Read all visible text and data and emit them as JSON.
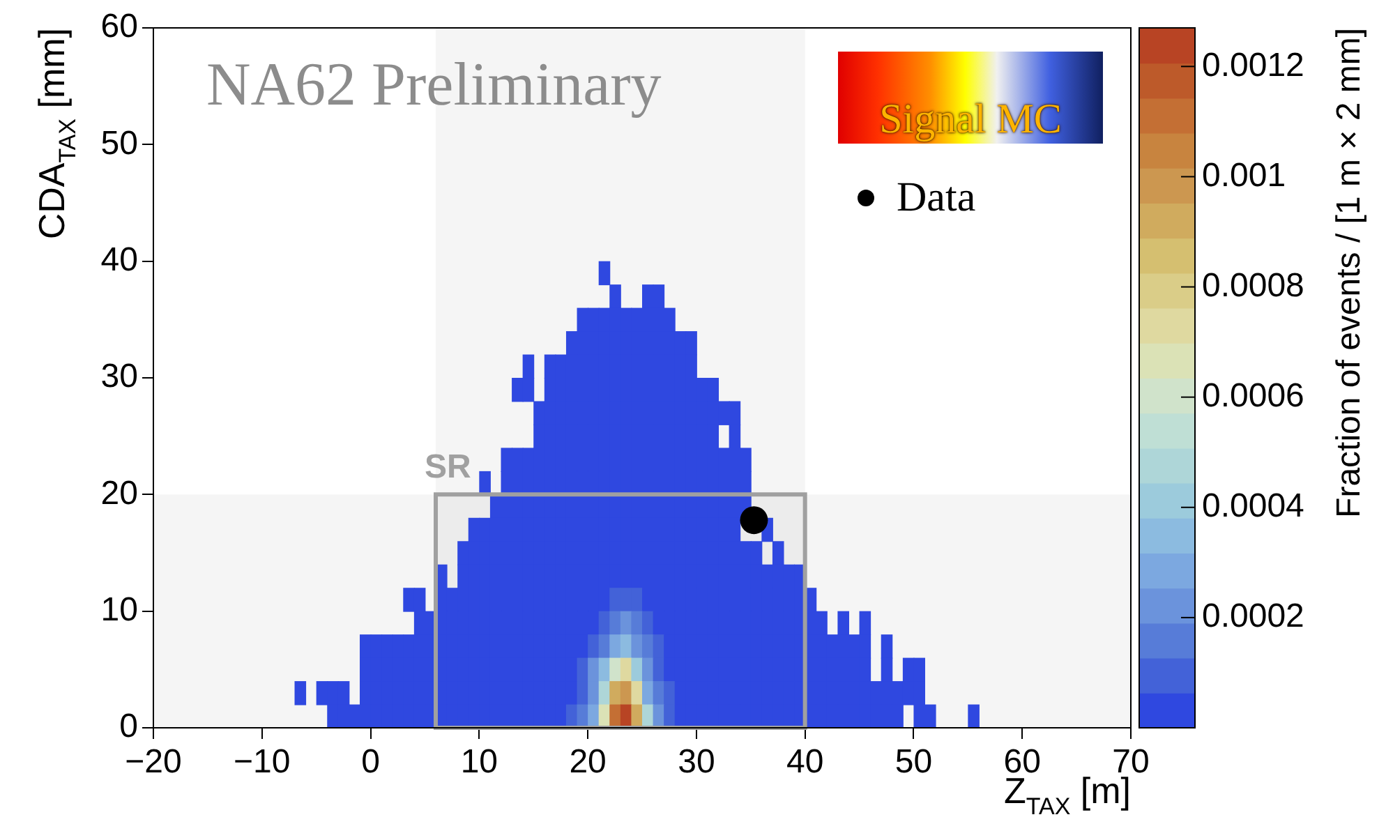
{
  "chart_data": {
    "type": "heatmap",
    "annotations": [
      "NA62 Preliminary"
    ],
    "xlabel": "Z$_{TAX}$ [m]",
    "ylabel": "CDA$_{TAX}$ [mm]",
    "clabel": "Fraction of events / [1 m × 2 mm]",
    "legend_title": "Signal MC",
    "xlim": [
      -20,
      70
    ],
    "xticks": [
      -20,
      -10,
      0,
      10,
      20,
      30,
      40,
      50,
      60,
      70
    ],
    "ylim": [
      0,
      60
    ],
    "yticks": [
      0,
      10,
      20,
      30,
      40,
      50,
      60
    ],
    "clim": [
      0,
      0.00127
    ],
    "cticks": [
      0.0002,
      0.0004,
      0.0006,
      0.0008,
      0.001,
      0.0012
    ],
    "legend": "top right",
    "grid": false,
    "marker": "circle",
    "bands": [
      {
        "axis": "x",
        "from": 6,
        "to": 40,
        "label": "SR",
        "color": "#a0a0a0"
      },
      {
        "axis": "y",
        "from": 0,
        "to": 20,
        "color": "#a0a0a0"
      }
    ],
    "series": [
      {
        "name": "Data",
        "type": "scatter",
        "x": [
          35.3
        ],
        "values": [
          17.8
        ],
        "color": "#000000"
      }
    ],
    "x": [
      -6.5,
      -5.5,
      -4.5,
      -3.5,
      -2.5,
      -1.5,
      -0.5,
      0.5,
      1.5,
      2.5,
      3.5,
      4.5,
      5.5,
      6.5,
      7.5,
      8.5,
      9.5,
      10.5,
      11.5,
      12.5,
      13.5,
      14.5,
      15.5,
      16.5,
      17.5,
      18.5,
      19.5,
      20.5,
      21.5,
      22.5,
      23.5,
      24.5,
      25.5,
      26.5,
      27.5,
      28.5,
      29.5,
      30.5,
      31.5,
      32.5,
      33.5,
      34.5,
      35.5,
      36.5,
      37.5,
      38.5,
      39.5,
      40.5,
      41.5,
      42.5,
      43.5,
      44.5,
      45.5,
      46.5,
      47.5,
      48.5,
      49.5,
      50.5,
      51.5,
      52.5,
      53.5,
      54.5,
      55.5
    ],
    "y": [
      39,
      37,
      35,
      33,
      31,
      29,
      27,
      25,
      23,
      21,
      19,
      17,
      15,
      13,
      11,
      9,
      7,
      5,
      3,
      1
    ],
    "cells": [
      [
        null,
        null,
        null,
        null,
        null,
        null,
        null,
        null,
        null,
        null,
        null,
        null,
        null,
        null,
        null,
        null,
        null,
        null,
        null,
        null,
        null,
        null,
        null,
        null,
        null,
        null,
        null,
        null,
        3e-05,
        null,
        null,
        null,
        null,
        null,
        null,
        null,
        null,
        null,
        null,
        null,
        null,
        null,
        null,
        null,
        null,
        null,
        null,
        null,
        null,
        null,
        null,
        null,
        null,
        null,
        null,
        null,
        null,
        null,
        null,
        null,
        null,
        null,
        null
      ],
      [
        null,
        null,
        null,
        null,
        null,
        null,
        null,
        null,
        null,
        null,
        null,
        null,
        null,
        null,
        null,
        null,
        null,
        null,
        null,
        null,
        null,
        null,
        null,
        null,
        null,
        null,
        null,
        null,
        null,
        3e-05,
        null,
        null,
        3e-05,
        3e-05,
        null,
        null,
        null,
        null,
        null,
        null,
        null,
        null,
        null,
        null,
        null,
        null,
        null,
        null,
        null,
        null,
        null,
        null,
        null,
        null,
        null,
        null,
        null,
        null,
        null,
        null,
        null,
        null,
        null
      ],
      [
        null,
        null,
        null,
        null,
        null,
        null,
        null,
        null,
        null,
        null,
        null,
        null,
        null,
        null,
        null,
        null,
        null,
        null,
        null,
        null,
        null,
        null,
        null,
        null,
        null,
        null,
        3e-05,
        3e-05,
        3e-05,
        3e-05,
        3e-05,
        3e-05,
        3e-05,
        3e-05,
        3e-05,
        null,
        null,
        null,
        null,
        null,
        null,
        null,
        null,
        null,
        null,
        null,
        null,
        null,
        null,
        null,
        null,
        null,
        null,
        null,
        null,
        null,
        null,
        null,
        null,
        null,
        null,
        null,
        null
      ],
      [
        null,
        null,
        null,
        null,
        null,
        null,
        null,
        null,
        null,
        null,
        null,
        null,
        null,
        null,
        null,
        null,
        null,
        null,
        null,
        null,
        null,
        null,
        null,
        null,
        null,
        3e-05,
        3e-05,
        3e-05,
        3e-05,
        3e-05,
        3e-05,
        3e-05,
        3e-05,
        3e-05,
        3e-05,
        3e-05,
        3e-05,
        null,
        null,
        null,
        null,
        null,
        null,
        null,
        null,
        null,
        null,
        null,
        null,
        null,
        null,
        null,
        null,
        null,
        null,
        null,
        null,
        null,
        null,
        null,
        null,
        null,
        null
      ],
      [
        null,
        null,
        null,
        null,
        null,
        null,
        null,
        null,
        null,
        null,
        null,
        null,
        null,
        null,
        null,
        null,
        null,
        null,
        null,
        null,
        null,
        3e-05,
        null,
        3e-05,
        3e-05,
        3e-05,
        3e-05,
        3e-05,
        3e-05,
        3e-05,
        3e-05,
        3e-05,
        3e-05,
        3e-05,
        3e-05,
        3e-05,
        3e-05,
        null,
        null,
        null,
        null,
        null,
        null,
        null,
        null,
        null,
        null,
        null,
        null,
        null,
        null,
        null,
        null,
        null,
        null,
        null,
        null,
        null,
        null,
        null,
        null,
        null,
        null
      ],
      [
        null,
        null,
        null,
        null,
        null,
        null,
        null,
        null,
        null,
        null,
        null,
        null,
        null,
        null,
        null,
        null,
        null,
        null,
        null,
        null,
        3e-05,
        3e-05,
        null,
        3e-05,
        3e-05,
        3e-05,
        3e-05,
        3e-05,
        3e-05,
        3e-05,
        3e-05,
        3e-05,
        3e-05,
        3e-05,
        3e-05,
        3e-05,
        3e-05,
        3e-05,
        3e-05,
        null,
        null,
        null,
        null,
        null,
        null,
        null,
        null,
        null,
        null,
        null,
        null,
        null,
        null,
        null,
        null,
        null,
        null,
        null,
        null,
        null,
        null,
        null,
        null
      ],
      [
        null,
        null,
        null,
        null,
        null,
        null,
        null,
        null,
        null,
        null,
        null,
        null,
        null,
        null,
        null,
        null,
        null,
        null,
        null,
        null,
        null,
        null,
        3e-05,
        3e-05,
        3e-05,
        3e-05,
        3e-05,
        3e-05,
        3e-05,
        3e-05,
        3e-05,
        3e-05,
        3e-05,
        3e-05,
        3e-05,
        3e-05,
        3e-05,
        3e-05,
        3e-05,
        3e-05,
        3e-05,
        null,
        null,
        null,
        null,
        null,
        null,
        null,
        null,
        null,
        null,
        null,
        null,
        null,
        null,
        null,
        null,
        null,
        null,
        null,
        null,
        null,
        null
      ],
      [
        null,
        null,
        null,
        null,
        null,
        null,
        null,
        null,
        null,
        null,
        null,
        null,
        null,
        null,
        null,
        null,
        null,
        null,
        null,
        null,
        null,
        null,
        3e-05,
        3e-05,
        3e-05,
        3e-05,
        3e-05,
        3e-05,
        3e-05,
        3e-05,
        3e-05,
        3e-05,
        3e-05,
        3e-05,
        3e-05,
        3e-05,
        3e-05,
        3e-05,
        3e-05,
        null,
        3e-05,
        null,
        null,
        null,
        null,
        null,
        null,
        null,
        null,
        null,
        null,
        null,
        null,
        null,
        null,
        null,
        null,
        null,
        null,
        null,
        null,
        null,
        null
      ],
      [
        null,
        null,
        null,
        null,
        null,
        null,
        null,
        null,
        null,
        null,
        null,
        null,
        null,
        null,
        null,
        null,
        null,
        null,
        null,
        3e-05,
        3e-05,
        3e-05,
        3e-05,
        3e-05,
        3e-05,
        3e-05,
        3e-05,
        3e-05,
        3e-05,
        3e-05,
        3e-05,
        3e-05,
        3e-05,
        3e-05,
        3e-05,
        3e-05,
        3e-05,
        3e-05,
        3e-05,
        3e-05,
        3e-05,
        3e-05,
        null,
        null,
        null,
        null,
        null,
        null,
        null,
        null,
        null,
        null,
        null,
        null,
        null,
        null,
        null,
        null,
        null,
        null,
        null,
        null,
        null
      ],
      [
        null,
        null,
        null,
        null,
        null,
        null,
        null,
        null,
        null,
        null,
        null,
        null,
        null,
        null,
        null,
        null,
        null,
        3e-05,
        null,
        3e-05,
        3e-05,
        3e-05,
        3e-05,
        3e-05,
        3e-05,
        3e-05,
        3e-05,
        3e-05,
        3e-05,
        3e-05,
        3e-05,
        3e-05,
        3e-05,
        3e-05,
        3e-05,
        3e-05,
        3e-05,
        3e-05,
        3e-05,
        3e-05,
        3e-05,
        3e-05,
        null,
        null,
        null,
        null,
        null,
        null,
        null,
        null,
        null,
        null,
        null,
        null,
        null,
        null,
        null,
        null,
        null,
        null,
        null,
        null,
        null
      ],
      [
        null,
        null,
        null,
        null,
        null,
        null,
        null,
        null,
        null,
        null,
        null,
        null,
        null,
        null,
        null,
        null,
        null,
        null,
        3e-05,
        3e-05,
        3e-05,
        3e-05,
        3e-05,
        3e-05,
        3e-05,
        3e-05,
        3e-05,
        3e-05,
        3e-05,
        3e-05,
        3e-05,
        3e-05,
        3e-05,
        3e-05,
        3e-05,
        3e-05,
        3e-05,
        3e-05,
        3e-05,
        3e-05,
        3e-05,
        3e-05,
        null,
        null,
        null,
        null,
        null,
        null,
        null,
        null,
        null,
        null,
        null,
        null,
        null,
        null,
        null,
        null,
        null,
        null,
        null,
        null,
        null
      ],
      [
        null,
        null,
        null,
        null,
        null,
        null,
        null,
        null,
        null,
        null,
        null,
        null,
        null,
        null,
        null,
        null,
        3e-05,
        3e-05,
        3e-05,
        3e-05,
        3e-05,
        3e-05,
        3e-05,
        3e-05,
        3e-05,
        3e-05,
        3e-05,
        3e-05,
        3e-05,
        3e-05,
        3e-05,
        3e-05,
        3e-05,
        3e-05,
        3e-05,
        3e-05,
        3e-05,
        3e-05,
        3e-05,
        3e-05,
        3e-05,
        null,
        null,
        3e-05,
        null,
        null,
        null,
        null,
        null,
        null,
        null,
        null,
        null,
        null,
        null,
        null,
        null,
        null,
        null,
        null,
        null,
        null,
        null
      ],
      [
        null,
        null,
        null,
        null,
        null,
        null,
        null,
        null,
        null,
        null,
        null,
        null,
        null,
        null,
        null,
        3e-05,
        3e-05,
        3e-05,
        3e-05,
        3e-05,
        3e-05,
        3e-05,
        3e-05,
        3e-05,
        3e-05,
        3e-05,
        3e-05,
        3e-05,
        3e-05,
        3e-05,
        3e-05,
        3e-05,
        3e-05,
        3e-05,
        3e-05,
        3e-05,
        3e-05,
        3e-05,
        3e-05,
        3e-05,
        3e-05,
        3e-05,
        3e-05,
        null,
        3e-05,
        null,
        null,
        null,
        null,
        null,
        null,
        null,
        null,
        null,
        null,
        null,
        null,
        null,
        null,
        null,
        null,
        null,
        null
      ],
      [
        null,
        null,
        null,
        null,
        null,
        null,
        null,
        null,
        null,
        null,
        null,
        null,
        null,
        3e-05,
        null,
        3e-05,
        3e-05,
        3e-05,
        3e-05,
        3e-05,
        3e-05,
        3e-05,
        3e-05,
        3e-05,
        3e-05,
        3e-05,
        3e-05,
        3e-05,
        3e-05,
        3e-05,
        3e-05,
        3e-05,
        3e-05,
        3e-05,
        3e-05,
        3e-05,
        3e-05,
        3e-05,
        3e-05,
        3e-05,
        3e-05,
        3e-05,
        3e-05,
        3e-05,
        3e-05,
        3e-05,
        3e-05,
        null,
        null,
        null,
        null,
        null,
        null,
        null,
        null,
        null,
        null,
        null,
        null,
        null,
        null,
        null,
        null
      ],
      [
        null,
        null,
        null,
        null,
        null,
        null,
        null,
        null,
        null,
        null,
        3e-05,
        3e-05,
        null,
        3e-05,
        3e-05,
        3e-05,
        3e-05,
        3e-05,
        3e-05,
        3e-05,
        3e-05,
        3e-05,
        3e-05,
        3e-05,
        3e-05,
        3e-05,
        3e-05,
        3e-05,
        3e-05,
        0.0001,
        0.0001,
        0.0001,
        3e-05,
        3e-05,
        3e-05,
        3e-05,
        3e-05,
        3e-05,
        3e-05,
        3e-05,
        3e-05,
        3e-05,
        3e-05,
        3e-05,
        3e-05,
        3e-05,
        3e-05,
        3e-05,
        null,
        null,
        null,
        null,
        null,
        null,
        null,
        null,
        null,
        null,
        null,
        null,
        null,
        null,
        null
      ],
      [
        null,
        null,
        null,
        null,
        null,
        null,
        null,
        null,
        null,
        null,
        null,
        3e-05,
        3e-05,
        3e-05,
        3e-05,
        3e-05,
        3e-05,
        3e-05,
        3e-05,
        3e-05,
        3e-05,
        3e-05,
        3e-05,
        3e-05,
        3e-05,
        3e-05,
        3e-05,
        3e-05,
        0.0001,
        0.00016,
        0.00022,
        0.00016,
        0.0001,
        3e-05,
        3e-05,
        3e-05,
        3e-05,
        3e-05,
        3e-05,
        3e-05,
        3e-05,
        3e-05,
        3e-05,
        3e-05,
        3e-05,
        3e-05,
        3e-05,
        3e-05,
        3e-05,
        null,
        3e-05,
        null,
        3e-05,
        null,
        null,
        null,
        null,
        null,
        null,
        null,
        null,
        null,
        null
      ],
      [
        null,
        null,
        null,
        null,
        null,
        null,
        3e-05,
        3e-05,
        3e-05,
        3e-05,
        3e-05,
        3e-05,
        3e-05,
        3e-05,
        3e-05,
        3e-05,
        3e-05,
        3e-05,
        3e-05,
        3e-05,
        3e-05,
        3e-05,
        3e-05,
        3e-05,
        3e-05,
        3e-05,
        3e-05,
        0.0001,
        0.00016,
        0.00029,
        0.00035,
        0.00022,
        0.00016,
        0.0001,
        3e-05,
        3e-05,
        3e-05,
        3e-05,
        3e-05,
        3e-05,
        3e-05,
        3e-05,
        3e-05,
        3e-05,
        3e-05,
        3e-05,
        3e-05,
        3e-05,
        3e-05,
        3e-05,
        3e-05,
        3e-05,
        3e-05,
        null,
        3e-05,
        null,
        null,
        null,
        null,
        null,
        null,
        null,
        null
      ],
      [
        null,
        null,
        null,
        null,
        null,
        null,
        3e-05,
        3e-05,
        3e-05,
        3e-05,
        3e-05,
        3e-05,
        3e-05,
        3e-05,
        3e-05,
        3e-05,
        3e-05,
        3e-05,
        3e-05,
        3e-05,
        3e-05,
        3e-05,
        3e-05,
        3e-05,
        3e-05,
        3e-05,
        0.0001,
        0.00022,
        0.00035,
        0.0006,
        0.00073,
        0.00041,
        0.00022,
        0.0001,
        3e-05,
        3e-05,
        3e-05,
        3e-05,
        3e-05,
        3e-05,
        3e-05,
        3e-05,
        3e-05,
        3e-05,
        3e-05,
        3e-05,
        3e-05,
        3e-05,
        3e-05,
        3e-05,
        3e-05,
        3e-05,
        3e-05,
        null,
        3e-05,
        null,
        3e-05,
        3e-05,
        null,
        null,
        null,
        null,
        null
      ],
      [
        3e-05,
        null,
        3e-05,
        3e-05,
        3e-05,
        null,
        3e-05,
        3e-05,
        3e-05,
        3e-05,
        3e-05,
        3e-05,
        3e-05,
        3e-05,
        3e-05,
        3e-05,
        3e-05,
        3e-05,
        3e-05,
        3e-05,
        3e-05,
        3e-05,
        3e-05,
        3e-05,
        3e-05,
        3e-05,
        0.0001,
        0.00022,
        0.00048,
        0.00092,
        0.00099,
        0.00073,
        0.00029,
        0.00016,
        0.0001,
        3e-05,
        3e-05,
        3e-05,
        3e-05,
        3e-05,
        3e-05,
        3e-05,
        3e-05,
        3e-05,
        3e-05,
        3e-05,
        3e-05,
        3e-05,
        3e-05,
        3e-05,
        3e-05,
        3e-05,
        3e-05,
        3e-05,
        3e-05,
        3e-05,
        3e-05,
        3e-05,
        null,
        null,
        null,
        null,
        null
      ],
      [
        null,
        null,
        null,
        3e-05,
        3e-05,
        3e-05,
        3e-05,
        3e-05,
        3e-05,
        3e-05,
        3e-05,
        3e-05,
        3e-05,
        3e-05,
        3e-05,
        3e-05,
        3e-05,
        3e-05,
        3e-05,
        3e-05,
        3e-05,
        3e-05,
        3e-05,
        3e-05,
        3e-05,
        0.0001,
        0.00016,
        0.00029,
        0.00067,
        0.0011,
        0.00124,
        0.00092,
        0.00048,
        0.00022,
        0.0001,
        3e-05,
        3e-05,
        3e-05,
        3e-05,
        3e-05,
        3e-05,
        3e-05,
        3e-05,
        3e-05,
        3e-05,
        3e-05,
        3e-05,
        3e-05,
        3e-05,
        3e-05,
        3e-05,
        3e-05,
        3e-05,
        3e-05,
        3e-05,
        3e-05,
        null,
        3e-05,
        3e-05,
        null,
        null,
        null,
        3e-05
      ]
    ]
  }
}
